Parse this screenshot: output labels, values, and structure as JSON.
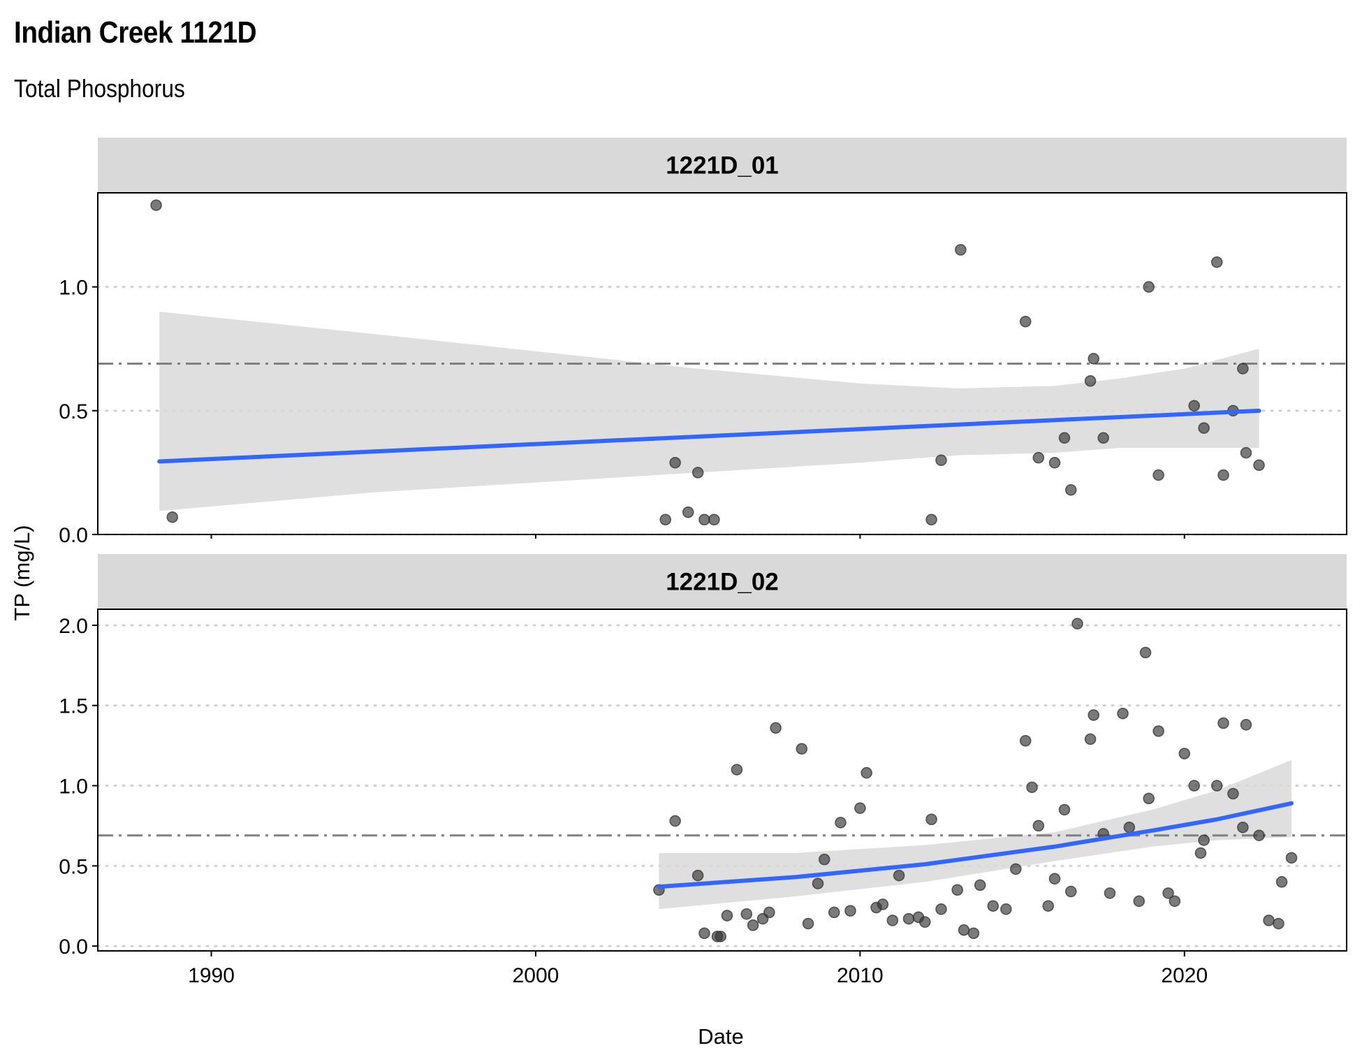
{
  "title": "Indian Creek 1121D",
  "subtitle": "Total Phosphorus",
  "chart_data": {
    "type": "scatter",
    "xlabel": "Date",
    "ylabel": "TP (mg/L)",
    "x_ticks": [
      1990,
      2000,
      2010,
      2020
    ],
    "xlim": [
      1986.5,
      2025
    ],
    "reference_line_y": 0.69,
    "colors": {
      "points": "#333333",
      "trend": "#3366ff",
      "ribbon": "#d9d9d9",
      "reference": "#808080",
      "strip": "#d9d9d9"
    },
    "panels": [
      {
        "name": "1221D_01",
        "ylim": [
          0,
          1.38
        ],
        "y_ticks": [
          0.0,
          0.5,
          1.0
        ],
        "y_tick_labels": [
          "0.0",
          "0.5",
          "1.0"
        ],
        "points": [
          [
            1988.3,
            1.33
          ],
          [
            1988.8,
            0.07
          ],
          [
            2004.0,
            0.06
          ],
          [
            2004.3,
            0.29
          ],
          [
            2004.7,
            0.09
          ],
          [
            2005.0,
            0.25
          ],
          [
            2005.2,
            0.06
          ],
          [
            2005.5,
            0.06
          ],
          [
            2012.2,
            0.06
          ],
          [
            2012.5,
            0.3
          ],
          [
            2013.1,
            1.15
          ],
          [
            2015.1,
            0.86
          ],
          [
            2015.5,
            0.31
          ],
          [
            2016.0,
            0.29
          ],
          [
            2016.3,
            0.39
          ],
          [
            2016.5,
            0.18
          ],
          [
            2017.1,
            0.62
          ],
          [
            2017.2,
            0.71
          ],
          [
            2017.5,
            0.39
          ],
          [
            2018.9,
            1.0
          ],
          [
            2019.2,
            0.24
          ],
          [
            2020.3,
            0.52
          ],
          [
            2020.6,
            0.43
          ],
          [
            2021.0,
            1.1
          ],
          [
            2021.2,
            0.24
          ],
          [
            2021.5,
            0.5
          ],
          [
            2021.8,
            0.67
          ],
          [
            2021.9,
            0.33
          ],
          [
            2022.3,
            0.28
          ]
        ],
        "trend": {
          "x": [
            1988.4,
            2022.3
          ],
          "y": [
            0.295,
            0.5
          ]
        },
        "ribbon": {
          "x": [
            1988.4,
            1995,
            2000,
            2005,
            2010,
            2013,
            2016,
            2018,
            2020,
            2022.3
          ],
          "upper": [
            0.9,
            0.81,
            0.74,
            0.67,
            0.61,
            0.59,
            0.6,
            0.63,
            0.67,
            0.75
          ],
          "lower": [
            0.095,
            0.17,
            0.21,
            0.25,
            0.29,
            0.32,
            0.33,
            0.35,
            0.35,
            0.35
          ]
        }
      },
      {
        "name": "1221D_02",
        "ylim": [
          -0.03,
          2.1
        ],
        "y_ticks": [
          0.0,
          0.5,
          1.0,
          1.5,
          2.0
        ],
        "y_tick_labels": [
          "0.0",
          "0.5",
          "1.0",
          "1.5",
          "2.0"
        ],
        "points": [
          [
            2003.8,
            0.35
          ],
          [
            2004.3,
            0.78
          ],
          [
            2005.0,
            0.44
          ],
          [
            2005.2,
            0.08
          ],
          [
            2005.6,
            0.06
          ],
          [
            2005.7,
            0.06
          ],
          [
            2005.9,
            0.19
          ],
          [
            2006.2,
            1.1
          ],
          [
            2006.5,
            0.2
          ],
          [
            2006.7,
            0.13
          ],
          [
            2007.0,
            0.17
          ],
          [
            2007.2,
            0.21
          ],
          [
            2007.4,
            1.36
          ],
          [
            2008.2,
            1.23
          ],
          [
            2008.4,
            0.14
          ],
          [
            2008.7,
            0.39
          ],
          [
            2008.9,
            0.54
          ],
          [
            2009.2,
            0.21
          ],
          [
            2009.4,
            0.77
          ],
          [
            2009.7,
            0.22
          ],
          [
            2010.0,
            0.86
          ],
          [
            2010.2,
            1.08
          ],
          [
            2010.5,
            0.24
          ],
          [
            2010.7,
            0.26
          ],
          [
            2011.0,
            0.16
          ],
          [
            2011.2,
            0.44
          ],
          [
            2011.5,
            0.17
          ],
          [
            2011.8,
            0.18
          ],
          [
            2012.0,
            0.15
          ],
          [
            2012.2,
            0.79
          ],
          [
            2012.5,
            0.23
          ],
          [
            2013.0,
            0.35
          ],
          [
            2013.2,
            0.1
          ],
          [
            2013.5,
            0.08
          ],
          [
            2013.7,
            0.38
          ],
          [
            2014.1,
            0.25
          ],
          [
            2014.5,
            0.23
          ],
          [
            2014.8,
            0.48
          ],
          [
            2015.1,
            1.28
          ],
          [
            2015.3,
            0.99
          ],
          [
            2015.5,
            0.75
          ],
          [
            2015.8,
            0.25
          ],
          [
            2016.0,
            0.42
          ],
          [
            2016.3,
            0.85
          ],
          [
            2016.5,
            0.34
          ],
          [
            2016.7,
            2.01
          ],
          [
            2017.1,
            1.29
          ],
          [
            2017.2,
            1.44
          ],
          [
            2017.5,
            0.7
          ],
          [
            2017.7,
            0.33
          ],
          [
            2018.1,
            1.45
          ],
          [
            2018.3,
            0.74
          ],
          [
            2018.6,
            0.28
          ],
          [
            2018.8,
            1.83
          ],
          [
            2018.9,
            0.92
          ],
          [
            2019.2,
            1.34
          ],
          [
            2019.5,
            0.33
          ],
          [
            2019.7,
            0.28
          ],
          [
            2020.0,
            1.2
          ],
          [
            2020.3,
            1.0
          ],
          [
            2020.5,
            0.58
          ],
          [
            2020.6,
            0.66
          ],
          [
            2021.0,
            1.0
          ],
          [
            2021.2,
            1.39
          ],
          [
            2021.5,
            0.95
          ],
          [
            2021.8,
            0.74
          ],
          [
            2021.9,
            1.38
          ],
          [
            2022.3,
            0.69
          ],
          [
            2022.6,
            0.16
          ],
          [
            2022.9,
            0.14
          ],
          [
            2023.0,
            0.4
          ],
          [
            2023.3,
            0.55
          ]
        ],
        "trend": {
          "x": [
            2003.8,
            2008,
            2012,
            2016,
            2019,
            2021,
            2023.3
          ],
          "y": [
            0.37,
            0.43,
            0.51,
            0.62,
            0.72,
            0.79,
            0.89
          ]
        },
        "ribbon": {
          "x": [
            2003.8,
            2008,
            2012,
            2016,
            2019,
            2021,
            2023.3
          ],
          "upper": [
            0.58,
            0.58,
            0.63,
            0.71,
            0.85,
            0.97,
            1.16
          ],
          "lower": [
            0.23,
            0.31,
            0.4,
            0.53,
            0.62,
            0.66,
            0.68
          ]
        }
      }
    ]
  }
}
